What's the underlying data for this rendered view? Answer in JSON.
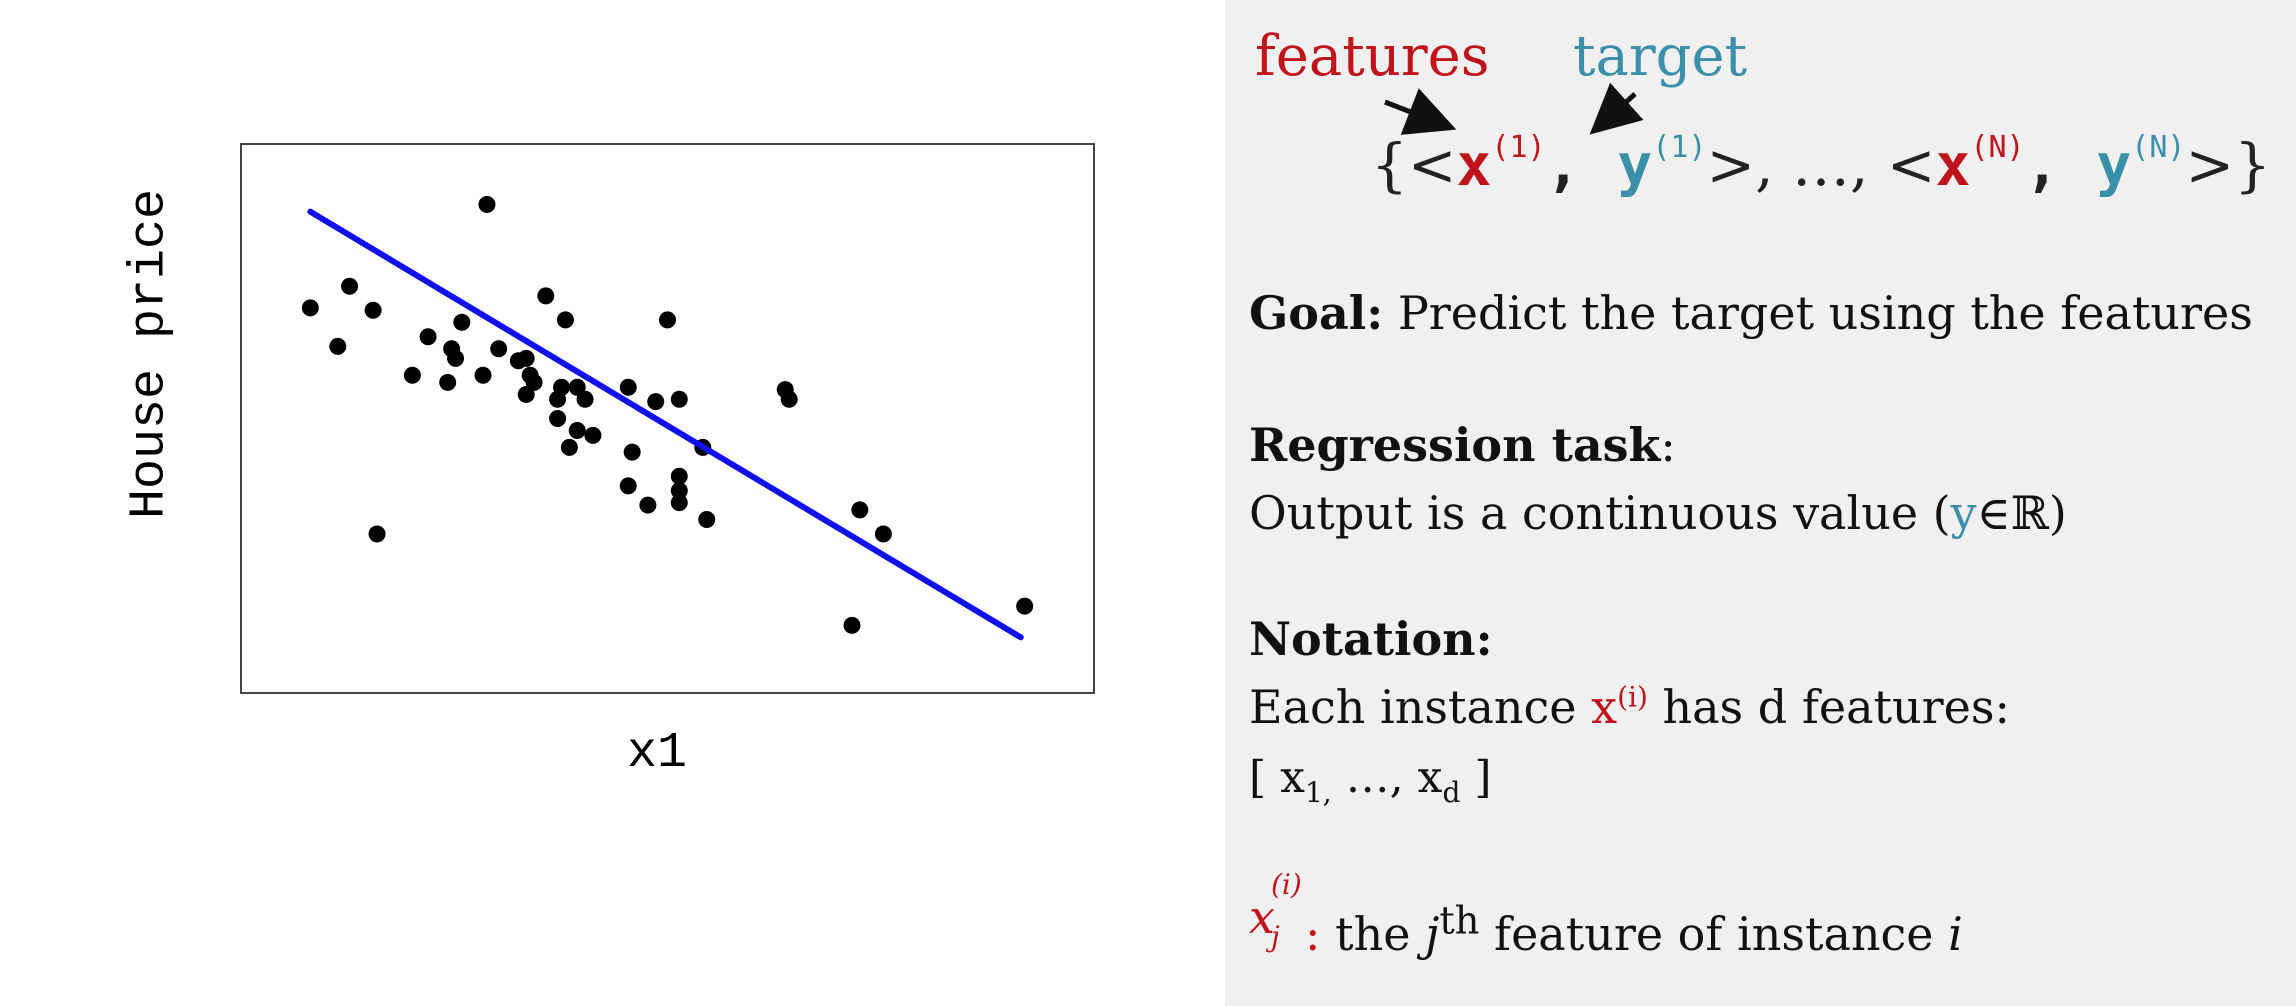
{
  "chart_data": {
    "type": "scatter",
    "xlabel": "x1",
    "ylabel": "House price",
    "xlim": [
      0,
      10
    ],
    "ylim": [
      0,
      10
    ],
    "grid": false,
    "points": [
      {
        "x": 0.45,
        "y": 7.3
      },
      {
        "x": 0.8,
        "y": 6.5
      },
      {
        "x": 0.95,
        "y": 7.75
      },
      {
        "x": 1.25,
        "y": 7.25
      },
      {
        "x": 1.3,
        "y": 2.6
      },
      {
        "x": 1.75,
        "y": 5.9
      },
      {
        "x": 1.95,
        "y": 6.7
      },
      {
        "x": 2.2,
        "y": 5.75
      },
      {
        "x": 2.25,
        "y": 6.45
      },
      {
        "x": 2.3,
        "y": 6.25
      },
      {
        "x": 2.38,
        "y": 7.0
      },
      {
        "x": 2.7,
        "y": 9.45
      },
      {
        "x": 2.65,
        "y": 5.9
      },
      {
        "x": 2.85,
        "y": 6.45
      },
      {
        "x": 3.1,
        "y": 6.2
      },
      {
        "x": 3.2,
        "y": 6.25
      },
      {
        "x": 3.25,
        "y": 5.9
      },
      {
        "x": 3.2,
        "y": 5.5
      },
      {
        "x": 3.3,
        "y": 5.75
      },
      {
        "x": 3.45,
        "y": 7.55
      },
      {
        "x": 3.6,
        "y": 5.4
      },
      {
        "x": 3.65,
        "y": 5.65
      },
      {
        "x": 3.6,
        "y": 5.0
      },
      {
        "x": 3.7,
        "y": 7.05
      },
      {
        "x": 3.75,
        "y": 4.4
      },
      {
        "x": 3.85,
        "y": 5.65
      },
      {
        "x": 3.85,
        "y": 4.75
      },
      {
        "x": 3.95,
        "y": 5.4
      },
      {
        "x": 4.05,
        "y": 4.65
      },
      {
        "x": 4.5,
        "y": 5.65
      },
      {
        "x": 4.5,
        "y": 3.6
      },
      {
        "x": 4.55,
        "y": 4.3
      },
      {
        "x": 4.75,
        "y": 3.2
      },
      {
        "x": 4.85,
        "y": 5.35
      },
      {
        "x": 5.0,
        "y": 7.05
      },
      {
        "x": 5.15,
        "y": 5.4
      },
      {
        "x": 5.15,
        "y": 3.8
      },
      {
        "x": 5.15,
        "y": 3.5
      },
      {
        "x": 5.15,
        "y": 3.25
      },
      {
        "x": 5.45,
        "y": 4.4
      },
      {
        "x": 5.5,
        "y": 2.9
      },
      {
        "x": 6.5,
        "y": 5.6
      },
      {
        "x": 6.55,
        "y": 5.4
      },
      {
        "x": 7.35,
        "y": 0.7
      },
      {
        "x": 7.45,
        "y": 3.1
      },
      {
        "x": 7.75,
        "y": 2.6
      },
      {
        "x": 9.55,
        "y": 1.1
      }
    ],
    "fit_line": {
      "x": [
        0.45,
        9.5
      ],
      "y": [
        9.3,
        0.45
      ],
      "color": "#1010ee"
    },
    "point_color": "#000000"
  },
  "panel": {
    "label_features": "features",
    "label_target": "target",
    "formula": {
      "open": "{<",
      "x": "x",
      "sup1": "(1)",
      "comma1": ",",
      "y": "y",
      "mid": ">, …, <",
      "supN": "(N)",
      "close": ">}"
    },
    "goal_bold": "Goal:",
    "goal_text": " Predict the target using the features",
    "regression_bold": "Regression task",
    "regression_colon": ":",
    "regression_desc_pre": "Output is a continuous value (",
    "regression_y": "y",
    "regression_desc_post": "∈ℝ)",
    "notation_bold": "Notation:",
    "notation_pre": "Each instance ",
    "notation_x": "x",
    "notation_sup": "(i)",
    "notation_post": " has d features:",
    "vector_open": "[ x",
    "vector_sub1": "1,",
    "vector_mid": " …, x",
    "vector_subd": "d",
    "vector_close": " ]",
    "def_x": "x",
    "def_sup": "(i)",
    "def_sub": "j",
    "def_colon": ":",
    "def_pre": "  the ",
    "def_j": "j",
    "def_th": "th",
    "def_mid": " feature of instance ",
    "def_i": "i"
  },
  "colors": {
    "feature_red": "#c0141c",
    "target_teal": "#3b8fa8",
    "panel_bg": "#f0f0f0"
  }
}
